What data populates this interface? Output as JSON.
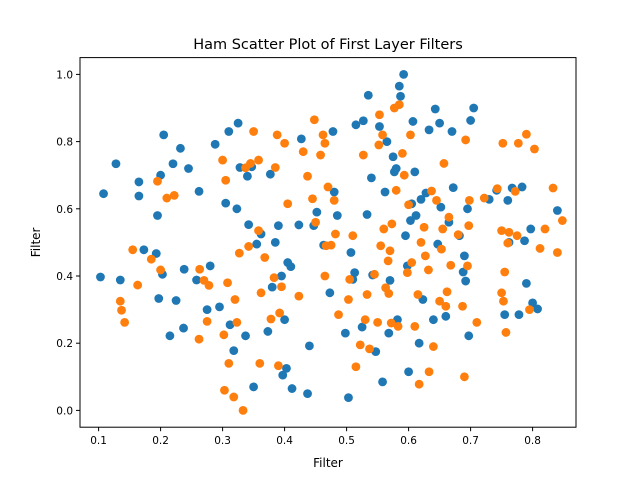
{
  "chart_data": {
    "type": "scatter",
    "title": "Ham Scatter Plot of First Layer Filters",
    "xlabel": "Filter",
    "ylabel": "Filter",
    "xlim": [
      0.07,
      0.87
    ],
    "ylim": [
      -0.05,
      1.05
    ],
    "xticks": [
      0.1,
      0.2,
      0.3,
      0.4,
      0.5,
      0.6,
      0.7,
      0.8
    ],
    "xtick_labels": [
      "0.1",
      "0.2",
      "0.3",
      "0.4",
      "0.5",
      "0.6",
      "0.7",
      "0.8"
    ],
    "yticks": [
      0.0,
      0.2,
      0.4,
      0.6,
      0.8,
      1.0
    ],
    "ytick_labels": [
      "0.0",
      "0.2",
      "0.4",
      "0.6",
      "0.8",
      "1.0"
    ],
    "grid": false,
    "legend": false,
    "series": [
      {
        "color": "#1f77b4",
        "points": [
          [
            0.103,
            0.397
          ],
          [
            0.108,
            0.645
          ],
          [
            0.128,
            0.734
          ],
          [
            0.135,
            0.388
          ],
          [
            0.165,
            0.68
          ],
          [
            0.165,
            0.638
          ],
          [
            0.173,
            0.478
          ],
          [
            0.193,
            0.467
          ],
          [
            0.195,
            0.58
          ],
          [
            0.197,
            0.333
          ],
          [
            0.2,
            0.7
          ],
          [
            0.203,
            0.405
          ],
          [
            0.205,
            0.82
          ],
          [
            0.215,
            0.222
          ],
          [
            0.22,
            0.734
          ],
          [
            0.225,
            0.327
          ],
          [
            0.232,
            0.78
          ],
          [
            0.237,
            0.245
          ],
          [
            0.238,
            0.42
          ],
          [
            0.245,
            0.72
          ],
          [
            0.258,
            0.388
          ],
          [
            0.262,
            0.652
          ],
          [
            0.275,
            0.3
          ],
          [
            0.28,
            0.43
          ],
          [
            0.288,
            0.792
          ],
          [
            0.295,
            0.308
          ],
          [
            0.305,
            0.617
          ],
          [
            0.31,
            0.83
          ],
          [
            0.312,
            0.255
          ],
          [
            0.318,
            0.178
          ],
          [
            0.323,
            0.6
          ],
          [
            0.325,
            0.855
          ],
          [
            0.328,
            0.723
          ],
          [
            0.337,
            0.222
          ],
          [
            0.34,
            0.697
          ],
          [
            0.342,
            0.553
          ],
          [
            0.347,
            0.725
          ],
          [
            0.35,
            0.07
          ],
          [
            0.355,
            0.495
          ],
          [
            0.362,
            0.525
          ],
          [
            0.373,
            0.235
          ],
          [
            0.377,
            0.703
          ],
          [
            0.38,
            0.367
          ],
          [
            0.385,
            0.5
          ],
          [
            0.39,
            0.55
          ],
          [
            0.395,
            0.4
          ],
          [
            0.397,
            0.105
          ],
          [
            0.4,
            0.27
          ],
          [
            0.403,
            0.125
          ],
          [
            0.405,
            0.44
          ],
          [
            0.41,
            0.428
          ],
          [
            0.412,
            0.065
          ],
          [
            0.423,
            0.552
          ],
          [
            0.427,
            0.808
          ],
          [
            0.437,
            0.05
          ],
          [
            0.44,
            0.192
          ],
          [
            0.447,
            0.55
          ],
          [
            0.452,
            0.59
          ],
          [
            0.463,
            0.492
          ],
          [
            0.473,
            0.35
          ],
          [
            0.478,
            0.83
          ],
          [
            0.48,
            0.65
          ],
          [
            0.485,
            0.58
          ],
          [
            0.498,
            0.23
          ],
          [
            0.503,
            0.038
          ],
          [
            0.507,
            0.47
          ],
          [
            0.51,
            0.39
          ],
          [
            0.513,
            0.41
          ],
          [
            0.515,
            0.85
          ],
          [
            0.525,
            0.248
          ],
          [
            0.527,
            0.862
          ],
          [
            0.533,
            0.583
          ],
          [
            0.535,
            0.938
          ],
          [
            0.54,
            0.692
          ],
          [
            0.542,
            0.403
          ],
          [
            0.547,
            0.175
          ],
          [
            0.553,
            0.845
          ],
          [
            0.558,
            0.085
          ],
          [
            0.562,
            0.65
          ],
          [
            0.565,
            0.8
          ],
          [
            0.568,
            0.23
          ],
          [
            0.57,
            0.387
          ],
          [
            0.575,
            0.755
          ],
          [
            0.577,
            0.71
          ],
          [
            0.58,
            0.72
          ],
          [
            0.582,
            0.27
          ],
          [
            0.585,
            0.965
          ],
          [
            0.587,
            0.935
          ],
          [
            0.592,
            1.0
          ],
          [
            0.595,
            0.52
          ],
          [
            0.598,
            0.43
          ],
          [
            0.6,
            0.115
          ],
          [
            0.603,
            0.565
          ],
          [
            0.605,
            0.615
          ],
          [
            0.607,
            0.86
          ],
          [
            0.61,
            0.71
          ],
          [
            0.612,
            0.58
          ],
          [
            0.617,
            0.2
          ],
          [
            0.62,
            0.628
          ],
          [
            0.623,
            0.33
          ],
          [
            0.628,
            0.647
          ],
          [
            0.633,
            0.835
          ],
          [
            0.64,
            0.27
          ],
          [
            0.643,
            0.897
          ],
          [
            0.647,
            0.495
          ],
          [
            0.65,
            0.855
          ],
          [
            0.652,
            0.605
          ],
          [
            0.66,
            0.28
          ],
          [
            0.665,
            0.56
          ],
          [
            0.67,
            0.83
          ],
          [
            0.672,
            0.663
          ],
          [
            0.682,
            0.52
          ],
          [
            0.688,
            0.412
          ],
          [
            0.69,
            0.46
          ],
          [
            0.692,
            0.385
          ],
          [
            0.695,
            0.6
          ],
          [
            0.697,
            0.222
          ],
          [
            0.7,
            0.863
          ],
          [
            0.705,
            0.9
          ],
          [
            0.73,
            0.628
          ],
          [
            0.742,
            0.655
          ],
          [
            0.755,
            0.285
          ],
          [
            0.76,
            0.625
          ],
          [
            0.762,
            0.5
          ],
          [
            0.767,
            0.662
          ],
          [
            0.778,
            0.285
          ],
          [
            0.783,
            0.665
          ],
          [
            0.787,
            0.505
          ],
          [
            0.79,
            0.378
          ],
          [
            0.797,
            0.54
          ],
          [
            0.8,
            0.32
          ],
          [
            0.808,
            0.302
          ],
          [
            0.84,
            0.595
          ]
        ]
      },
      {
        "color": "#ff7f0e",
        "points": [
          [
            0.135,
            0.325
          ],
          [
            0.137,
            0.298
          ],
          [
            0.142,
            0.262
          ],
          [
            0.155,
            0.478
          ],
          [
            0.163,
            0.373
          ],
          [
            0.185,
            0.45
          ],
          [
            0.195,
            0.682
          ],
          [
            0.2,
            0.418
          ],
          [
            0.21,
            0.632
          ],
          [
            0.222,
            0.64
          ],
          [
            0.262,
            0.212
          ],
          [
            0.263,
            0.42
          ],
          [
            0.27,
            0.387
          ],
          [
            0.275,
            0.265
          ],
          [
            0.278,
            0.372
          ],
          [
            0.3,
            0.745
          ],
          [
            0.302,
            0.225
          ],
          [
            0.303,
            0.06
          ],
          [
            0.305,
            0.685
          ],
          [
            0.308,
            0.38
          ],
          [
            0.31,
            0.14
          ],
          [
            0.318,
            0.04
          ],
          [
            0.32,
            0.33
          ],
          [
            0.323,
            0.262
          ],
          [
            0.327,
            0.468
          ],
          [
            0.333,
            0.0
          ],
          [
            0.337,
            0.722
          ],
          [
            0.342,
            0.488
          ],
          [
            0.345,
            0.735
          ],
          [
            0.35,
            0.83
          ],
          [
            0.358,
            0.745
          ],
          [
            0.358,
            0.535
          ],
          [
            0.36,
            0.14
          ],
          [
            0.362,
            0.35
          ],
          [
            0.368,
            0.455
          ],
          [
            0.378,
            0.272
          ],
          [
            0.383,
            0.395
          ],
          [
            0.385,
            0.723
          ],
          [
            0.388,
            0.82
          ],
          [
            0.39,
            0.133
          ],
          [
            0.392,
            0.29
          ],
          [
            0.395,
            0.368
          ],
          [
            0.4,
            0.795
          ],
          [
            0.405,
            0.615
          ],
          [
            0.423,
            0.34
          ],
          [
            0.43,
            0.77
          ],
          [
            0.437,
            0.697
          ],
          [
            0.445,
            0.63
          ],
          [
            0.448,
            0.865
          ],
          [
            0.45,
            0.56
          ],
          [
            0.458,
            0.76
          ],
          [
            0.462,
            0.82
          ],
          [
            0.465,
            0.795
          ],
          [
            0.465,
            0.4
          ],
          [
            0.467,
            0.49
          ],
          [
            0.47,
            0.665
          ],
          [
            0.475,
            0.492
          ],
          [
            0.48,
            0.625
          ],
          [
            0.482,
            0.525
          ],
          [
            0.487,
            0.285
          ],
          [
            0.503,
            0.33
          ],
          [
            0.505,
            0.39
          ],
          [
            0.51,
            0.52
          ],
          [
            0.515,
            0.13
          ],
          [
            0.522,
            0.195
          ],
          [
            0.527,
            0.76
          ],
          [
            0.53,
            0.27
          ],
          [
            0.533,
            0.345
          ],
          [
            0.537,
            0.183
          ],
          [
            0.545,
            0.405
          ],
          [
            0.55,
            0.262
          ],
          [
            0.552,
            0.79
          ],
          [
            0.553,
            0.88
          ],
          [
            0.555,
            0.49
          ],
          [
            0.558,
            0.82
          ],
          [
            0.56,
            0.54
          ],
          [
            0.563,
            0.365
          ],
          [
            0.567,
            0.445
          ],
          [
            0.568,
            0.348
          ],
          [
            0.57,
            0.475
          ],
          [
            0.572,
            0.26
          ],
          [
            0.573,
            0.555
          ],
          [
            0.577,
            0.9
          ],
          [
            0.58,
            0.655
          ],
          [
            0.583,
            0.25
          ],
          [
            0.585,
            0.91
          ],
          [
            0.59,
            0.765
          ],
          [
            0.593,
            0.7
          ],
          [
            0.598,
            0.41
          ],
          [
            0.6,
            0.612
          ],
          [
            0.603,
            0.82
          ],
          [
            0.605,
            0.44
          ],
          [
            0.61,
            0.25
          ],
          [
            0.615,
            0.345
          ],
          [
            0.617,
            0.078
          ],
          [
            0.62,
            0.5
          ],
          [
            0.625,
            0.545
          ],
          [
            0.627,
            0.46
          ],
          [
            0.632,
            0.418
          ],
          [
            0.633,
            0.115
          ],
          [
            0.637,
            0.653
          ],
          [
            0.64,
            0.19
          ],
          [
            0.645,
            0.625
          ],
          [
            0.65,
            0.325
          ],
          [
            0.653,
            0.48
          ],
          [
            0.655,
            0.54
          ],
          [
            0.657,
            0.735
          ],
          [
            0.66,
            0.31
          ],
          [
            0.662,
            0.353
          ],
          [
            0.665,
            0.575
          ],
          [
            0.668,
            0.432
          ],
          [
            0.68,
            0.523
          ],
          [
            0.687,
            0.31
          ],
          [
            0.69,
            0.1
          ],
          [
            0.692,
            0.805
          ],
          [
            0.695,
            0.43
          ],
          [
            0.697,
            0.55
          ],
          [
            0.698,
            0.625
          ],
          [
            0.71,
            0.262
          ],
          [
            0.722,
            0.632
          ],
          [
            0.743,
            0.66
          ],
          [
            0.75,
            0.535
          ],
          [
            0.75,
            0.35
          ],
          [
            0.752,
            0.795
          ],
          [
            0.753,
            0.325
          ],
          [
            0.755,
            0.412
          ],
          [
            0.757,
            0.232
          ],
          [
            0.76,
            0.498
          ],
          [
            0.762,
            0.53
          ],
          [
            0.772,
            0.652
          ],
          [
            0.775,
            0.52
          ],
          [
            0.777,
            0.795
          ],
          [
            0.79,
            0.822
          ],
          [
            0.795,
            0.3
          ],
          [
            0.803,
            0.778
          ],
          [
            0.812,
            0.482
          ],
          [
            0.82,
            0.54
          ],
          [
            0.833,
            0.662
          ],
          [
            0.84,
            0.47
          ],
          [
            0.848,
            0.565
          ]
        ]
      }
    ]
  }
}
